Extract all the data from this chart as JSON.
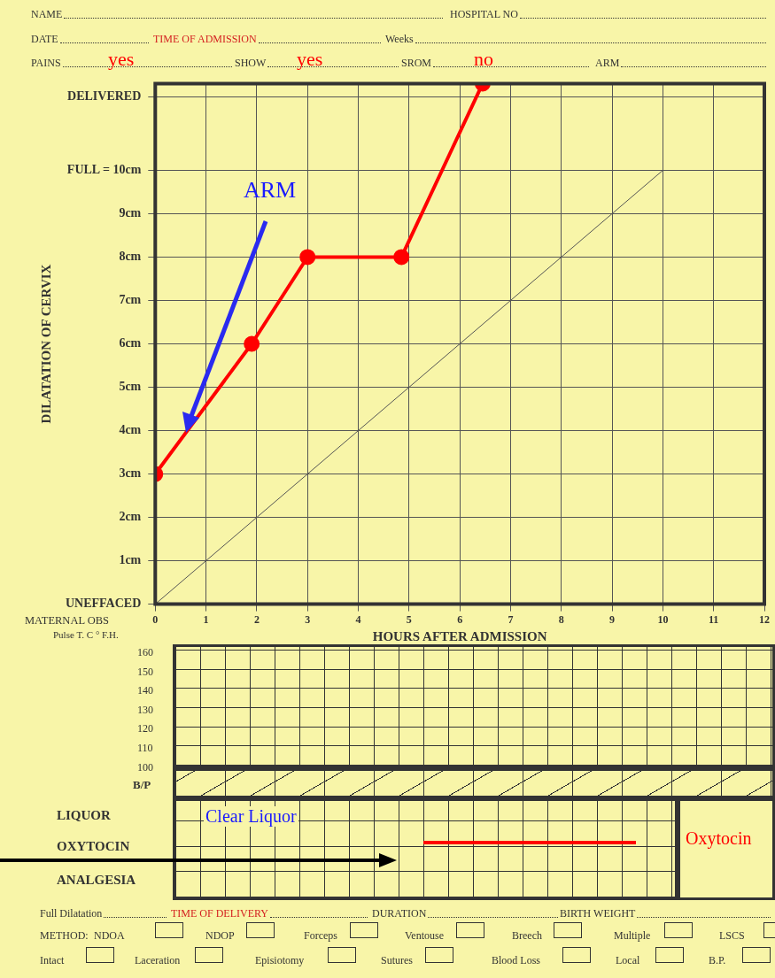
{
  "chart_data": {
    "type": "line",
    "xlabel": "HOURS AFTER ADMISSION",
    "ylabel": "DILATATION OF CERVIX",
    "xlim": [
      0,
      12
    ],
    "xticks": [
      0,
      1,
      2,
      3,
      4,
      5,
      6,
      7,
      8,
      9,
      10,
      11,
      12
    ],
    "ylim": [
      0,
      12
    ],
    "yticks": [
      {
        "value": 0,
        "label": "UNEFFACED"
      },
      {
        "value": 1,
        "label": "1cm"
      },
      {
        "value": 2,
        "label": "2cm"
      },
      {
        "value": 3,
        "label": "3cm"
      },
      {
        "value": 4,
        "label": "4cm"
      },
      {
        "value": 5,
        "label": "5cm"
      },
      {
        "value": 6,
        "label": "6cm"
      },
      {
        "value": 7,
        "label": "7cm"
      },
      {
        "value": 8,
        "label": "8cm"
      },
      {
        "value": 9,
        "label": "9cm"
      },
      {
        "value": 10,
        "label": "FULL = 10cm"
      },
      {
        "value": 11.7,
        "label": "DELIVERED"
      }
    ],
    "grid": true,
    "legend": false,
    "marker": "circle",
    "series": [
      {
        "color": "#ff0000",
        "x": [
          0,
          1.9,
          3,
          4.85,
          6.45
        ],
        "values": [
          3,
          6,
          8,
          8,
          12
        ]
      },
      {
        "color": "#555555",
        "x": [
          0,
          10
        ],
        "values": [
          0,
          10
        ],
        "marker": "none"
      }
    ],
    "annotations": [
      "ARM",
      "NAME",
      "HOSPITAL NO",
      "DATE",
      "TIME OF ADMISSION",
      "Weeks",
      "PAINS",
      "yes",
      "SHOW",
      "yes",
      "SROM",
      "no",
      "ARM",
      "MATERNAL OBS",
      "Pulse T. C ° F.H.",
      "160",
      "150",
      "140",
      "130",
      "120",
      "110",
      "100",
      "B/P",
      "LIQUOR",
      "Clear Liquor",
      "OXYTOCIN",
      "Oxytocin",
      "ANALGESIA",
      "Full Dilatation",
      "TIME OF DELIVERY",
      "DURATION",
      "BIRTH WEIGHT",
      "METHOD:",
      "NDOA",
      "NDOP",
      "Forceps",
      "Ventouse",
      "Breech",
      "Multiple",
      "LSCS",
      "Intact",
      "Laceration",
      "Episiotomy",
      "Sutures",
      "Blood Loss",
      "Local",
      "B.P."
    ]
  }
}
